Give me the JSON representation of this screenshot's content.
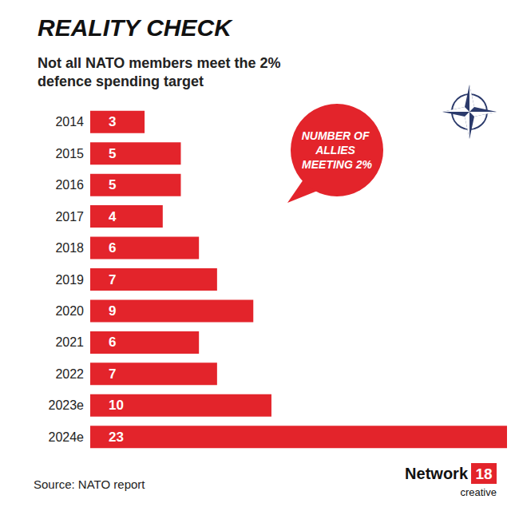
{
  "chart_data": {
    "type": "bar",
    "title": "REALITY CHECK",
    "subtitle": "Not all NATO members meet the 2% defence spending target",
    "categories": [
      "2014",
      "2015",
      "2016",
      "2017",
      "2018",
      "2019",
      "2020",
      "2021",
      "2022",
      "2023e",
      "2024e"
    ],
    "values": [
      3,
      5,
      5,
      4,
      6,
      7,
      9,
      6,
      7,
      10,
      23
    ],
    "color": "#e3242b",
    "orientation": "horizontal",
    "xlim": [
      0,
      23
    ],
    "data_labels": true,
    "tick_labels": "y",
    "grid": false,
    "annotations": [
      "NUMBER OF ALLIES MEETING 2%"
    ],
    "source": "Source: NATO report",
    "logo": [
      "Network",
      "18",
      "creative"
    ]
  }
}
